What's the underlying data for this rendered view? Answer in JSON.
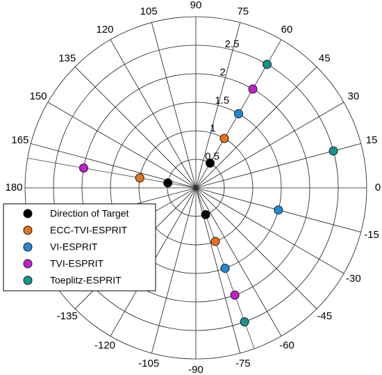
{
  "chart_data": {
    "type": "polar-scatter",
    "theta_ticks": [
      "0",
      "15",
      "30",
      "45",
      "60",
      "75",
      "90",
      "105",
      "120",
      "135",
      "150",
      "165",
      "180",
      "-135",
      "-120",
      "-105",
      "-90",
      "-75",
      "-60",
      "-45",
      "-30",
      "-15"
    ],
    "r_ticks": [
      "0.5",
      "1",
      "1.5",
      "2",
      "2.5"
    ],
    "rlim": [
      0,
      3
    ],
    "theta_grid_step_deg": 15,
    "grid": true,
    "legend_location": "lower-left",
    "series": [
      {
        "name": "Direction of Target",
        "color": "#000000",
        "points": [
          {
            "theta": 60,
            "r": 0.5
          },
          {
            "theta": 170,
            "r": 0.5
          },
          {
            "theta": -70,
            "r": 0.5
          }
        ]
      },
      {
        "name": "ECC-TVI-ESPRIT",
        "color": "#e8711a",
        "points": [
          {
            "theta": 60,
            "r": 1.0
          },
          {
            "theta": 170,
            "r": 1.0
          },
          {
            "theta": -70,
            "r": 1.0
          }
        ]
      },
      {
        "name": "VI-ESPRIT",
        "color": "#1f8ad6",
        "points": [
          {
            "theta": 60,
            "r": 1.5
          },
          {
            "theta": -15,
            "r": 1.5
          },
          {
            "theta": -70,
            "r": 1.5
          }
        ]
      },
      {
        "name": "TVI-ESPRIT",
        "color": "#c21fcc",
        "points": [
          {
            "theta": 60,
            "r": 2.0
          },
          {
            "theta": 170,
            "r": 2.0
          },
          {
            "theta": -70,
            "r": 2.0
          }
        ]
      },
      {
        "name": "Toeplitz-ESPRIT",
        "color": "#119692",
        "points": [
          {
            "theta": 60,
            "r": 2.5
          },
          {
            "theta": 15,
            "r": 2.5
          },
          {
            "theta": -70,
            "r": 2.5
          }
        ]
      }
    ],
    "guide_lines_theta": [
      60,
      170,
      -70
    ]
  }
}
